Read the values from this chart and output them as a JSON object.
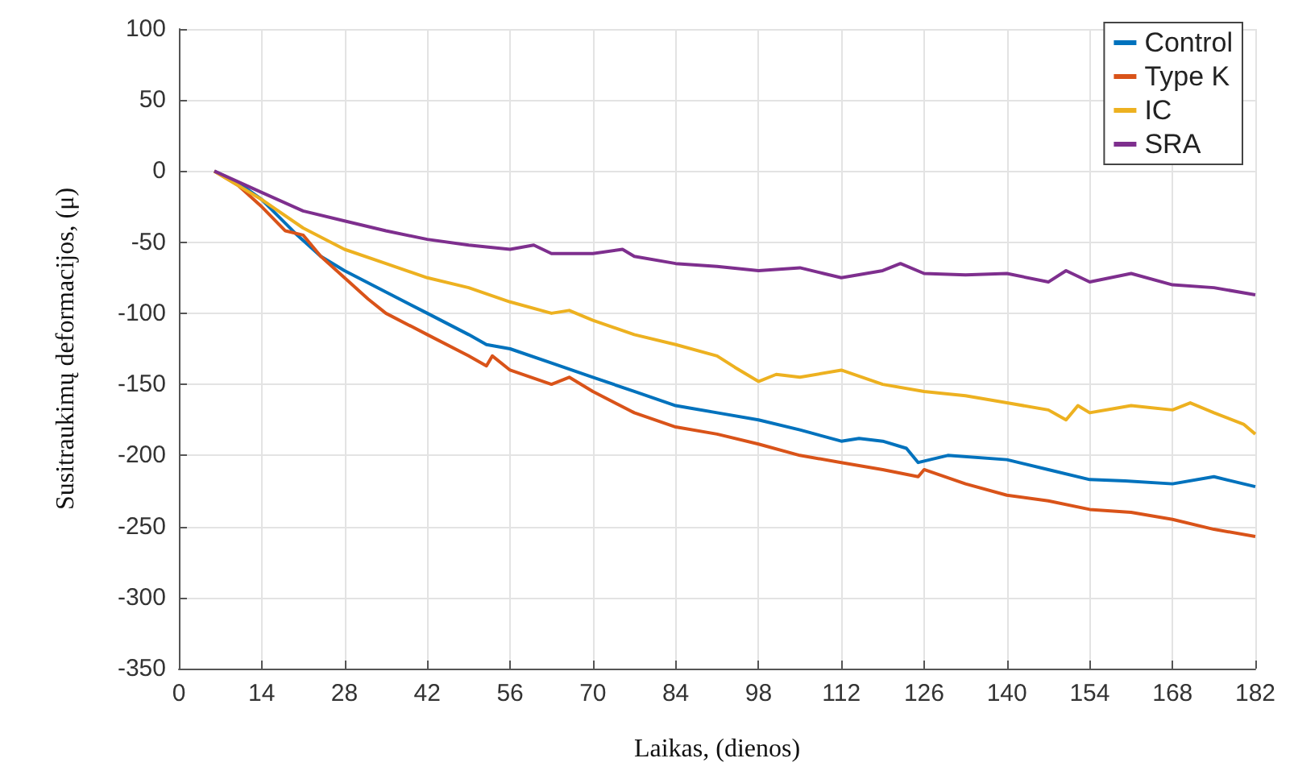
{
  "chart_data": {
    "type": "line",
    "xlabel": "Laikas, (dienos)",
    "ylabel": "Susitraukimų deformacijos, (μ)",
    "xlim": [
      0,
      182
    ],
    "xticks": [
      0,
      14,
      28,
      42,
      56,
      70,
      84,
      98,
      112,
      126,
      140,
      154,
      168,
      182
    ],
    "ylim": [
      -350,
      100
    ],
    "yticks": [
      -350,
      -300,
      -250,
      -200,
      -150,
      -100,
      -50,
      0,
      50,
      100
    ],
    "grid": true,
    "legend": "top right",
    "marker": "none",
    "line_style": "solid",
    "series": [
      {
        "name": "Control",
        "color": "#0072bd",
        "x": [
          6,
          10,
          14,
          20,
          24,
          28,
          35,
          42,
          49,
          52,
          56,
          63,
          70,
          77,
          84,
          91,
          98,
          105,
          112,
          115,
          119,
          123,
          125,
          130,
          140,
          147,
          154,
          160,
          168,
          175,
          182
        ],
        "values": [
          0,
          -8,
          -20,
          -45,
          -60,
          -70,
          -85,
          -100,
          -115,
          -122,
          -125,
          -135,
          -145,
          -155,
          -165,
          -170,
          -175,
          -182,
          -190,
          -188,
          -190,
          -195,
          -205,
          -200,
          -203,
          -210,
          -217,
          -218,
          -220,
          -215,
          -222
        ]
      },
      {
        "name": "Type K",
        "color": "#d95319",
        "x": [
          6,
          10,
          14,
          18,
          21,
          24,
          28,
          32,
          35,
          42,
          49,
          52,
          53,
          56,
          63,
          66,
          70,
          77,
          84,
          91,
          98,
          105,
          112,
          119,
          125,
          126,
          133,
          140,
          147,
          154,
          161,
          168,
          175,
          182
        ],
        "values": [
          0,
          -10,
          -25,
          -42,
          -45,
          -60,
          -75,
          -90,
          -100,
          -115,
          -130,
          -137,
          -130,
          -140,
          -150,
          -145,
          -155,
          -170,
          -180,
          -185,
          -192,
          -200,
          -205,
          -210,
          -215,
          -210,
          -220,
          -228,
          -232,
          -238,
          -240,
          -245,
          -252,
          -257
        ]
      },
      {
        "name": "IC",
        "color": "#edb120",
        "x": [
          6,
          14,
          21,
          28,
          35,
          42,
          49,
          56,
          63,
          66,
          70,
          77,
          84,
          91,
          94,
          98,
          101,
          105,
          112,
          119,
          126,
          133,
          140,
          147,
          150,
          152,
          154,
          161,
          168,
          171,
          175,
          180,
          182
        ],
        "values": [
          0,
          -20,
          -40,
          -55,
          -65,
          -75,
          -82,
          -92,
          -100,
          -98,
          -105,
          -115,
          -122,
          -130,
          -138,
          -148,
          -143,
          -145,
          -140,
          -150,
          -155,
          -158,
          -163,
          -168,
          -175,
          -165,
          -170,
          -165,
          -168,
          -163,
          -170,
          -178,
          -185
        ]
      },
      {
        "name": "SRA",
        "color": "#7e2f8e",
        "x": [
          6,
          14,
          21,
          28,
          35,
          42,
          49,
          56,
          60,
          63,
          70,
          75,
          77,
          84,
          91,
          98,
          105,
          109,
          112,
          119,
          122,
          126,
          133,
          140,
          147,
          150,
          154,
          161,
          168,
          175,
          182
        ],
        "values": [
          0,
          -15,
          -28,
          -35,
          -42,
          -48,
          -52,
          -55,
          -52,
          -58,
          -58,
          -55,
          -60,
          -65,
          -67,
          -70,
          -68,
          -72,
          -75,
          -70,
          -65,
          -72,
          -73,
          -72,
          -78,
          -70,
          -78,
          -72,
          -80,
          -82,
          -87
        ]
      }
    ]
  }
}
